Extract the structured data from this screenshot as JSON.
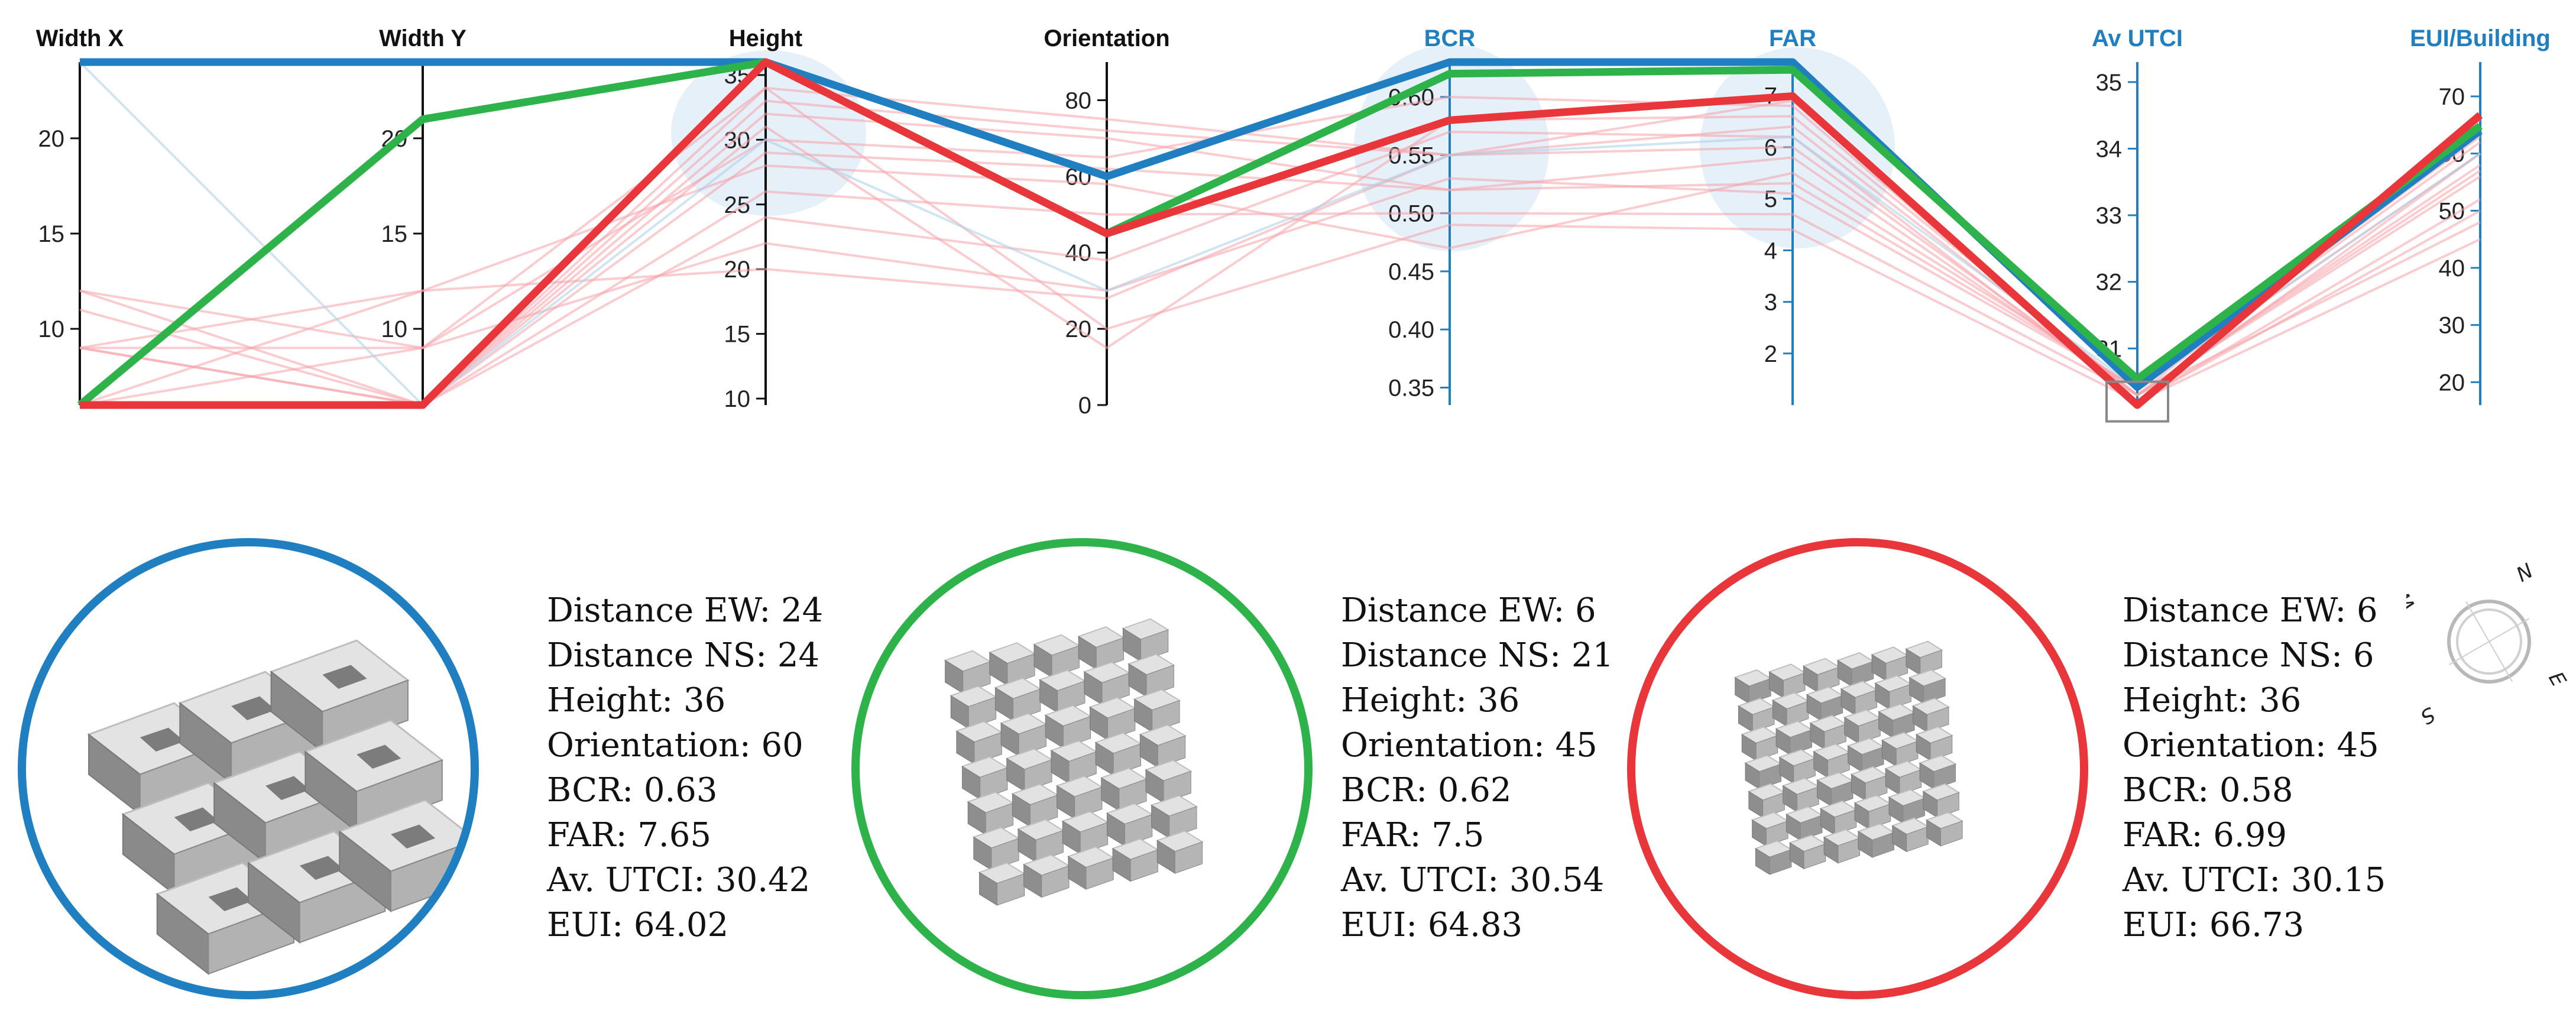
{
  "chart_data": {
    "type": "parallel-coordinates",
    "axes": [
      {
        "name": "Width X",
        "min": 6,
        "max": 24,
        "ticks": [
          10,
          15,
          20
        ],
        "labeled": false
      },
      {
        "name": "Width Y",
        "min": 6,
        "max": 24,
        "ticks": [
          10,
          15,
          20
        ],
        "labeled": false
      },
      {
        "name": "Height",
        "min": 9.5,
        "max": 36,
        "ticks": [
          10,
          15,
          20,
          25,
          30,
          35
        ],
        "labeled": false
      },
      {
        "name": "Orientation",
        "min": 0,
        "max": 90,
        "ticks": [
          0,
          20,
          40,
          60,
          80
        ],
        "labeled": false
      },
      {
        "name": "BCR",
        "min": 0.335,
        "max": 0.63,
        "ticks": [
          0.35,
          0.4,
          0.45,
          0.5,
          0.55,
          0.6
        ],
        "tick_labels": [
          "0.35",
          "0.40",
          "0.45",
          "0.50",
          "0.55",
          "0.60"
        ],
        "labeled": true
      },
      {
        "name": "FAR",
        "min": 1,
        "max": 7.65,
        "ticks": [
          2,
          3,
          4,
          5,
          6,
          7
        ],
        "labeled": true
      },
      {
        "name": "Av UTCI",
        "min": 30.15,
        "max": 35.3,
        "ticks": [
          31,
          32,
          33,
          34,
          35
        ],
        "labeled": true
      },
      {
        "name": "EUI/Building",
        "min": 16,
        "max": 76,
        "ticks": [
          20,
          30,
          40,
          50,
          60,
          70
        ],
        "labeled": true
      }
    ],
    "highlighted": [
      {
        "name": "blue",
        "color": "#1f7fc1",
        "values": [
          24,
          24,
          36,
          60,
          0.63,
          7.65,
          30.42,
          64.02
        ]
      },
      {
        "name": "green",
        "color": "#2db34a",
        "values": [
          6,
          21,
          36,
          45,
          0.62,
          7.5,
          30.54,
          64.83
        ]
      },
      {
        "name": "red",
        "color": "#e8363a",
        "values": [
          6,
          6,
          36,
          45,
          0.58,
          6.99,
          30.15,
          66.73
        ]
      }
    ],
    "background_series": [
      {
        "color": "#f5a3a9",
        "values": [
          12,
          6,
          34,
          75,
          0.55,
          6.4,
          30.3,
          48
        ]
      },
      {
        "color": "#f5a3a9",
        "values": [
          9,
          6,
          32,
          70,
          0.52,
          5.8,
          30.3,
          56
        ]
      },
      {
        "color": "#f5a3a9",
        "values": [
          6,
          9,
          30,
          65,
          0.6,
          6.8,
          30.2,
          60
        ]
      },
      {
        "color": "#f5a3a9",
        "values": [
          9,
          12,
          28,
          58,
          0.47,
          5.5,
          30.4,
          62
        ]
      },
      {
        "color": "#f5a3a9",
        "values": [
          6,
          6,
          26,
          50,
          0.5,
          4.7,
          30.3,
          58
        ]
      },
      {
        "color": "#f5a3a9",
        "values": [
          9,
          6,
          24,
          38,
          0.57,
          6.2,
          30.2,
          52
        ]
      },
      {
        "color": "#f5a3a9",
        "values": [
          12,
          9,
          22,
          30,
          0.53,
          5.1,
          30.4,
          60
        ]
      },
      {
        "color": "#f5a3a9",
        "values": [
          6,
          12,
          20,
          28,
          0.55,
          6.0,
          30.3,
          66
        ]
      },
      {
        "color": "#f5a3a9",
        "values": [
          9,
          9,
          34,
          20,
          0.49,
          4.4,
          30.2,
          50
        ]
      },
      {
        "color": "#f5a3a9",
        "values": [
          6,
          6,
          31,
          15,
          0.58,
          6.6,
          30.3,
          57
        ]
      },
      {
        "color": "#f5a3a9",
        "values": [
          11,
          6,
          29,
          62,
          0.52,
          5.3,
          30.4,
          63
        ]
      },
      {
        "color": "#f5a3a9",
        "values": [
          6,
          6,
          33,
          72,
          0.55,
          6.9,
          30.2,
          45
        ]
      },
      {
        "color": "#aacfe8",
        "values": [
          24,
          6,
          30,
          30,
          0.55,
          6.2,
          30.4,
          60
        ]
      }
    ],
    "selection_brush_axis": "Av UTCI",
    "selection_brush_range": [
      30.1,
      30.5
    ]
  },
  "panels": [
    {
      "color": "#1f7fc1",
      "model": "courtyard-blocks",
      "lines": [
        "Distance EW: 24",
        "Distance NS: 24",
        "Height: 36",
        "Orientation: 60",
        "BCR: 0.63",
        "FAR: 7.65",
        "Av. UTCI: 30.42",
        "EUI: 64.02"
      ]
    },
    {
      "color": "#2db34a",
      "model": "long-bar-blocks",
      "lines": [
        "Distance EW: 6",
        "Distance NS: 21",
        "Height: 36",
        "Orientation: 45",
        "BCR: 0.62",
        "FAR: 7.5",
        "Av. UTCI: 30.54",
        "EUI: 64.83"
      ]
    },
    {
      "color": "#e8363a",
      "model": "dense-grid-blocks",
      "lines": [
        "Distance EW: 6",
        "Distance NS: 6",
        "Height: 36",
        "Orientation: 45",
        "BCR: 0.58",
        "FAR: 6.99",
        "Av. UTCI: 30.15",
        "EUI: 66.73"
      ]
    }
  ],
  "compass": {
    "labels": [
      "N",
      "E",
      "S",
      "W"
    ]
  },
  "colors": {
    "black_axis": "#111111",
    "blue_axis": "#1f7fc1",
    "brush_bg": "#dcebf7"
  }
}
